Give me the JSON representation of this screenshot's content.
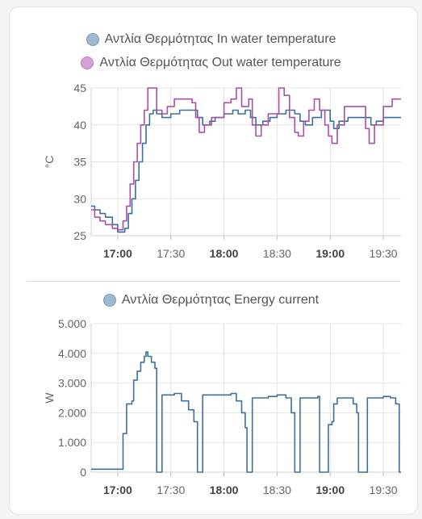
{
  "chart_data": [
    {
      "type": "line",
      "ylabel": "°C",
      "ylim": [
        25,
        45
      ],
      "yticks": [
        "25",
        "30",
        "35",
        "40",
        "45"
      ],
      "xlim": [
        "16:45",
        "19:40"
      ],
      "xticks": [
        {
          "label": "17:00",
          "t": "17:00",
          "bold": true
        },
        {
          "label": "17:30",
          "t": "17:30",
          "bold": false
        },
        {
          "label": "18:00",
          "t": "18:00",
          "bold": true
        },
        {
          "label": "18:30",
          "t": "18:30",
          "bold": false
        },
        {
          "label": "19:00",
          "t": "19:00",
          "bold": true
        },
        {
          "label": "19:30",
          "t": "19:30",
          "bold": false
        }
      ],
      "grid": true,
      "legend": "top-center",
      "series": [
        {
          "name": "Αντλία Θερμότητας In water temperature",
          "color": "#3e6f9c",
          "legend_fill": "#9fb9d1",
          "legend_stroke": "#7e9bb8",
          "points": [
            [
              "16:45",
              29
            ],
            [
              "16:47",
              28.5
            ],
            [
              "16:50",
              28
            ],
            [
              "16:53",
              27.5
            ],
            [
              "16:57",
              26.5
            ],
            [
              "17:00",
              25.5
            ],
            [
              "17:04",
              26
            ],
            [
              "17:06",
              28
            ],
            [
              "17:08",
              30
            ],
            [
              "17:10",
              32.5
            ],
            [
              "17:12",
              35
            ],
            [
              "17:14",
              37.5
            ],
            [
              "17:16",
              40
            ],
            [
              "17:18",
              41.5
            ],
            [
              "17:20",
              42
            ],
            [
              "17:22",
              41.5
            ],
            [
              "17:25",
              41
            ],
            [
              "17:30",
              41.5
            ],
            [
              "17:35",
              42
            ],
            [
              "17:42",
              42
            ],
            [
              "17:45",
              41
            ],
            [
              "17:48",
              40
            ],
            [
              "17:52",
              40.5
            ],
            [
              "17:55",
              41
            ],
            [
              "18:00",
              41.5
            ],
            [
              "18:05",
              42
            ],
            [
              "18:08",
              41.5
            ],
            [
              "18:12",
              42
            ],
            [
              "18:15",
              41
            ],
            [
              "18:18",
              40
            ],
            [
              "18:22",
              40.5
            ],
            [
              "18:26",
              41
            ],
            [
              "18:30",
              41.5
            ],
            [
              "18:35",
              42
            ],
            [
              "18:40",
              41.5
            ],
            [
              "18:43",
              40.5
            ],
            [
              "18:46",
              40
            ],
            [
              "18:50",
              41
            ],
            [
              "18:55",
              42
            ],
            [
              "19:00",
              40.5
            ],
            [
              "19:02",
              39.5
            ],
            [
              "19:05",
              40.5
            ],
            [
              "19:10",
              41
            ],
            [
              "19:20",
              41
            ],
            [
              "19:23",
              40
            ],
            [
              "19:26",
              40.5
            ],
            [
              "19:30",
              41
            ],
            [
              "19:40",
              41
            ]
          ]
        },
        {
          "name": "Αντλία Θερμότητας Out water temperature",
          "color": "#a94fa8",
          "legend_fill": "#d6a0d8",
          "legend_stroke": "#b97fbd",
          "points": [
            [
              "16:45",
              28.5
            ],
            [
              "16:47",
              27.5
            ],
            [
              "16:50",
              27
            ],
            [
              "16:53",
              26.5
            ],
            [
              "16:57",
              26
            ],
            [
              "17:00",
              25.8
            ],
            [
              "17:03",
              27
            ],
            [
              "17:05",
              29
            ],
            [
              "17:07",
              32
            ],
            [
              "17:09",
              35
            ],
            [
              "17:11",
              37.5
            ],
            [
              "17:13",
              40
            ],
            [
              "17:15",
              42
            ],
            [
              "17:17",
              45
            ],
            [
              "17:21",
              45
            ],
            [
              "17:22",
              42
            ],
            [
              "17:25",
              41.5
            ],
            [
              "17:28",
              42.5
            ],
            [
              "17:32",
              43.5
            ],
            [
              "17:38",
              43.5
            ],
            [
              "17:42",
              43
            ],
            [
              "17:44",
              41
            ],
            [
              "17:46",
              39
            ],
            [
              "17:49",
              40
            ],
            [
              "17:53",
              41
            ],
            [
              "18:00",
              43
            ],
            [
              "18:04",
              43.5
            ],
            [
              "18:07",
              45
            ],
            [
              "18:10",
              42.5
            ],
            [
              "18:14",
              43.5
            ],
            [
              "18:16",
              40
            ],
            [
              "18:18",
              38.5
            ],
            [
              "18:21",
              40
            ],
            [
              "18:25",
              41.5
            ],
            [
              "18:31",
              45
            ],
            [
              "18:34",
              44
            ],
            [
              "18:37",
              41
            ],
            [
              "18:40",
              39
            ],
            [
              "18:42",
              38.5
            ],
            [
              "18:45",
              40.5
            ],
            [
              "18:48",
              42
            ],
            [
              "18:51",
              43.5
            ],
            [
              "18:54",
              42
            ],
            [
              "18:57",
              40
            ],
            [
              "18:59",
              38.5
            ],
            [
              "19:01",
              37.5
            ],
            [
              "19:04",
              40
            ],
            [
              "19:08",
              42.5
            ],
            [
              "19:18",
              42.5
            ],
            [
              "19:20",
              39.5
            ],
            [
              "19:22",
              37.5
            ],
            [
              "19:25",
              40
            ],
            [
              "19:30",
              42.5
            ],
            [
              "19:35",
              43.5
            ],
            [
              "19:40",
              43.5
            ]
          ]
        }
      ]
    },
    {
      "type": "line",
      "ylabel": "W",
      "ylim": [
        0,
        5000
      ],
      "yticks": [
        "0",
        "1.000",
        "2.000",
        "3.000",
        "4.000",
        "5.000"
      ],
      "xlim": [
        "16:45",
        "19:40"
      ],
      "xticks": [
        {
          "label": "17:00",
          "t": "17:00",
          "bold": true
        },
        {
          "label": "17:30",
          "t": "17:30",
          "bold": false
        },
        {
          "label": "18:00",
          "t": "18:00",
          "bold": true
        },
        {
          "label": "18:30",
          "t": "18:30",
          "bold": false
        },
        {
          "label": "19:00",
          "t": "19:00",
          "bold": true
        },
        {
          "label": "19:30",
          "t": "19:30",
          "bold": false
        }
      ],
      "grid": true,
      "legend": "top-center",
      "series": [
        {
          "name": "Αντλία Θερμότητας Energy current",
          "color": "#3e6f9c",
          "legend_fill": "#9fb9d1",
          "legend_stroke": "#7e9bb8",
          "points": [
            [
              "16:45",
              100
            ],
            [
              "17:03",
              100
            ],
            [
              "17:03",
              1300
            ],
            [
              "17:05",
              1300
            ],
            [
              "17:05",
              2300
            ],
            [
              "17:08",
              2400
            ],
            [
              "17:09",
              3100
            ],
            [
              "17:11",
              3400
            ],
            [
              "17:13",
              3700
            ],
            [
              "17:15",
              3900
            ],
            [
              "17:16",
              4050
            ],
            [
              "17:17",
              3900
            ],
            [
              "17:19",
              3700
            ],
            [
              "17:21",
              3500
            ],
            [
              "17:22",
              3300
            ],
            [
              "17:22",
              0
            ],
            [
              "17:25",
              100
            ],
            [
              "17:25",
              2600
            ],
            [
              "17:30",
              2600
            ],
            [
              "17:32",
              2650
            ],
            [
              "17:36",
              2400
            ],
            [
              "17:40",
              2100
            ],
            [
              "17:43",
              1700
            ],
            [
              "17:45",
              1600
            ],
            [
              "17:45",
              0
            ],
            [
              "17:48",
              100
            ],
            [
              "17:48",
              2600
            ],
            [
              "17:55",
              2600
            ],
            [
              "18:00",
              2600
            ],
            [
              "18:04",
              2650
            ],
            [
              "18:07",
              2400
            ],
            [
              "18:10",
              2000
            ],
            [
              "18:12",
              1500
            ],
            [
              "18:13",
              0
            ],
            [
              "18:16",
              100
            ],
            [
              "18:16",
              2500
            ],
            [
              "18:25",
              2550
            ],
            [
              "18:30",
              2600
            ],
            [
              "18:35",
              2500
            ],
            [
              "18:38",
              2000
            ],
            [
              "18:40",
              1500
            ],
            [
              "18:40",
              0
            ],
            [
              "18:43",
              100
            ],
            [
              "18:43",
              2500
            ],
            [
              "18:53",
              2550
            ],
            [
              "18:54",
              2500
            ],
            [
              "18:54",
              0
            ],
            [
              "18:59",
              100
            ],
            [
              "18:59",
              1600
            ],
            [
              "19:01",
              1700
            ],
            [
              "19:02",
              2300
            ],
            [
              "19:04",
              2500
            ],
            [
              "19:10",
              2500
            ],
            [
              "19:13",
              2300
            ],
            [
              "19:15",
              2000
            ],
            [
              "19:16",
              1600
            ],
            [
              "19:16",
              0
            ],
            [
              "19:21",
              100
            ],
            [
              "19:21",
              2500
            ],
            [
              "19:30",
              2550
            ],
            [
              "19:34",
              2500
            ],
            [
              "19:37",
              2300
            ],
            [
              "19:39",
              2000
            ],
            [
              "19:39",
              0
            ],
            [
              "19:40",
              0
            ]
          ]
        }
      ]
    }
  ]
}
